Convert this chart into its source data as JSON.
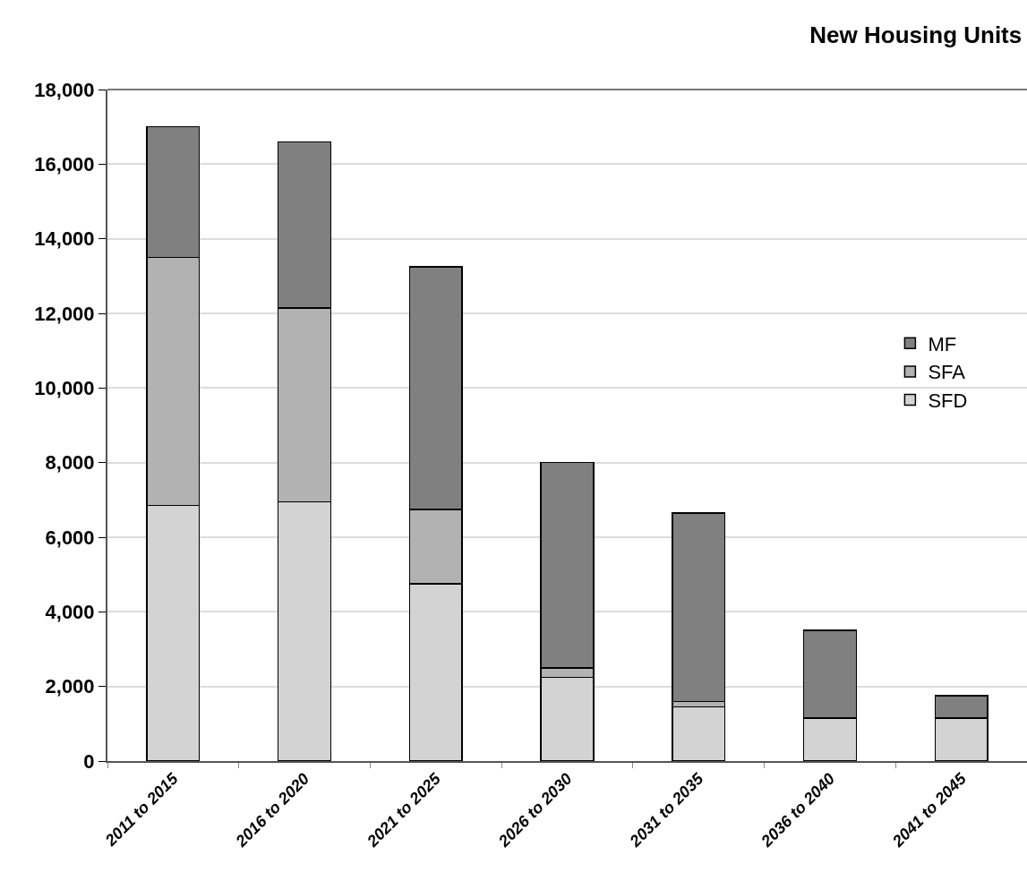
{
  "chart_data": {
    "type": "bar",
    "title": "New Housing Units",
    "stacked": true,
    "categories": [
      "2011 to 2015",
      "2016 to 2020",
      "2021 to 2025",
      "2026 to 2030",
      "2031 to 2035",
      "2036 to 2040",
      "2041 to 2045"
    ],
    "series": [
      {
        "name": "SFD",
        "color": "#d3d3d3",
        "values": [
          6850,
          6950,
          4750,
          2250,
          1450,
          1150,
          1150
        ]
      },
      {
        "name": "SFA",
        "color": "#b2b2b2",
        "values": [
          6650,
          5200,
          2000,
          250,
          150,
          0,
          0
        ]
      },
      {
        "name": "MF",
        "color": "#808080",
        "values": [
          3500,
          4450,
          6500,
          5500,
          5050,
          2350,
          600
        ]
      }
    ],
    "ylim": [
      0,
      18000
    ],
    "yticks": [
      {
        "value": 0,
        "label": "0"
      },
      {
        "value": 2000,
        "label": "2,000"
      },
      {
        "value": 4000,
        "label": "4,000"
      },
      {
        "value": 6000,
        "label": "6,000"
      },
      {
        "value": 8000,
        "label": "8,000"
      },
      {
        "value": 10000,
        "label": "10,000"
      },
      {
        "value": 12000,
        "label": "12,000"
      },
      {
        "value": 14000,
        "label": "14,000"
      },
      {
        "value": 16000,
        "label": "16,000"
      },
      {
        "value": 18000,
        "label": "18,000"
      }
    ],
    "grid": "y",
    "legend": "right"
  }
}
